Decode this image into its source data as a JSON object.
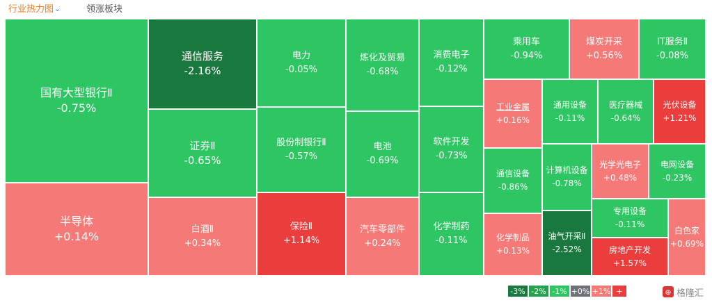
{
  "tabs": {
    "heatmap_label": "行业热力图",
    "rising_label": "领涨板块"
  },
  "colors": {
    "dark_green": "#19783d",
    "green": "#2ec663",
    "pink": "#f57977",
    "red": "#ec3d3d",
    "gray": "#6e7178"
  },
  "heatmap": {
    "cells": [
      {
        "name": "国有大型银行Ⅱ",
        "pct": "-0.75%"
      },
      {
        "name": "半导体",
        "pct": "+0.14%"
      },
      {
        "name": "通信服务",
        "pct": "-2.16%"
      },
      {
        "name": "证券Ⅱ",
        "pct": "-0.65%"
      },
      {
        "name": "白酒Ⅱ",
        "pct": "+0.34%"
      },
      {
        "name": "电力",
        "pct": "-0.05%"
      },
      {
        "name": "股份制银行Ⅱ",
        "pct": "-0.57%"
      },
      {
        "name": "保险Ⅱ",
        "pct": "+1.14%"
      },
      {
        "name": "炼化及贸易",
        "pct": "-0.68%"
      },
      {
        "name": "电池",
        "pct": "-0.69%"
      },
      {
        "name": "汽车零部件",
        "pct": "+0.24%"
      },
      {
        "name": "消费电子",
        "pct": "-0.12%"
      },
      {
        "name": "软件开发",
        "pct": "-0.73%"
      },
      {
        "name": "化学制药",
        "pct": "-0.11%"
      },
      {
        "name": "乘用车",
        "pct": "-0.94%"
      },
      {
        "name": "煤炭开采",
        "pct": "+0.56%"
      },
      {
        "name": "IT服务Ⅱ",
        "pct": "-0.08%"
      },
      {
        "name": "工业金属",
        "pct": "+0.16%"
      },
      {
        "name": "通用设备",
        "pct": "-0.11%"
      },
      {
        "name": "医疗器械",
        "pct": "-0.64%"
      },
      {
        "name": "光伏设备",
        "pct": "+1.21%"
      },
      {
        "name": "通信设备",
        "pct": "-0.86%"
      },
      {
        "name": "计算机设备",
        "pct": "-0.78%"
      },
      {
        "name": "光学光电子",
        "pct": "+0.48%"
      },
      {
        "name": "电网设备",
        "pct": "-0.23%"
      },
      {
        "name": "化学制品",
        "pct": "+0.13%"
      },
      {
        "name": "油气开采Ⅱ",
        "pct": "-2.52%"
      },
      {
        "name": "专用设备",
        "pct": "-0.11%"
      },
      {
        "name": "房地产开发",
        "pct": "+1.57%"
      },
      {
        "name": "白色家",
        "pct": "+0.69%"
      }
    ]
  },
  "legend": {
    "items": [
      "-3%",
      "-2%",
      "-1%",
      "+0%",
      "+1%",
      "+"
    ]
  },
  "brand": {
    "icon": "logo-icon",
    "text": "格隆汇"
  }
}
